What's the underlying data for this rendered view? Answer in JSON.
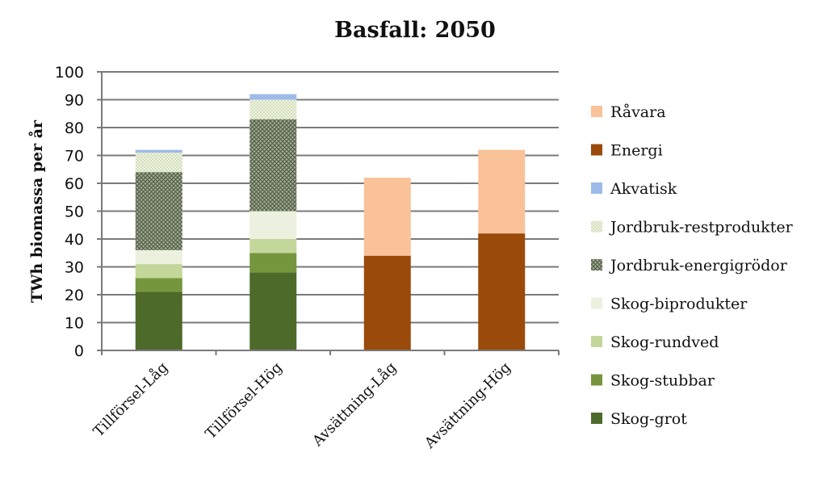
{
  "chart_data": {
    "type": "bar",
    "stacked": true,
    "title": "Basfall: 2050",
    "xlabel": "",
    "ylabel": "TWh biomassa per år",
    "ylim": [
      0,
      100
    ],
    "yticks": [
      0,
      10,
      20,
      30,
      40,
      50,
      60,
      70,
      80,
      90,
      100
    ],
    "grid": true,
    "legend_position": "right",
    "categories": [
      "Tillförsel-Låg",
      "Tillförsel-Hög",
      "Avsättning-Låg",
      "Avsättning-Hög"
    ],
    "series": [
      {
        "name": "Skog-grot",
        "color": "#4e6a2a",
        "pattern": "solid",
        "values": [
          21,
          28,
          0,
          0
        ]
      },
      {
        "name": "Skog-stubbar",
        "color": "#76963d",
        "pattern": "solid",
        "values": [
          5,
          7,
          0,
          0
        ]
      },
      {
        "name": "Skog-rundved",
        "color": "#c3d79b",
        "pattern": "solid",
        "values": [
          5,
          5,
          0,
          0
        ]
      },
      {
        "name": "Skog-biprodukter",
        "color": "#ebf1de",
        "pattern": "solid",
        "values": [
          5,
          10,
          0,
          0
        ]
      },
      {
        "name": "Jordbruk-energigrödor",
        "color": "#7d8a6e",
        "pattern": "crosshatch",
        "values": [
          28,
          33,
          0,
          0
        ]
      },
      {
        "name": "Jordbruk-restprodukter",
        "color": "#e6efd2",
        "pattern": "dots",
        "values": [
          7,
          7,
          0,
          0
        ]
      },
      {
        "name": "Akvatisk",
        "color": "#9dbbe8",
        "pattern": "solid",
        "values": [
          1,
          2,
          0,
          0
        ]
      },
      {
        "name": "Energi",
        "color": "#9a4a0a",
        "pattern": "solid",
        "values": [
          0,
          0,
          34,
          42
        ]
      },
      {
        "name": "Råvara",
        "color": "#f9c299",
        "pattern": "solid",
        "values": [
          0,
          0,
          28,
          30
        ]
      }
    ],
    "legend_order": [
      "Råvara",
      "Energi",
      "Akvatisk",
      "Jordbruk-restprodukter",
      "Jordbruk-energigrödor",
      "Skog-biprodukter",
      "Skog-rundved",
      "Skog-stubbar",
      "Skog-grot"
    ]
  }
}
